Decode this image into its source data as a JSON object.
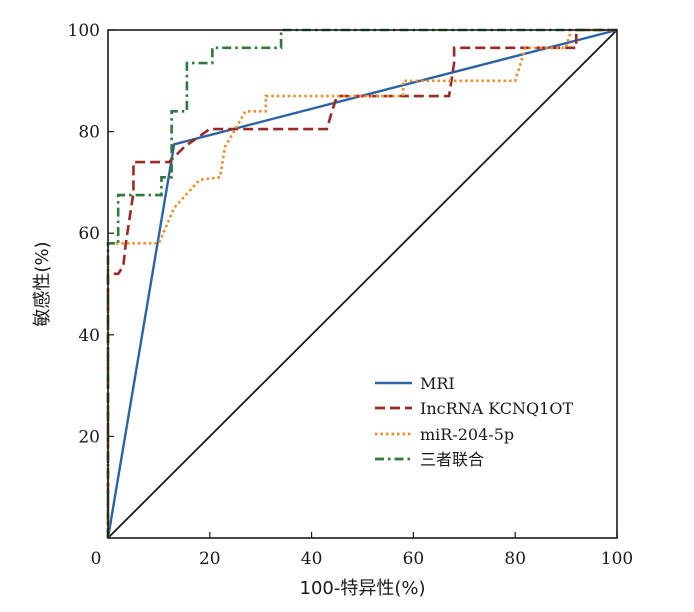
{
  "chart_data": {
    "type": "line",
    "title": "",
    "xlabel": "100-特异性(%)",
    "ylabel": "敏感性(%)",
    "xlim": [
      0,
      100
    ],
    "ylim": [
      0,
      100
    ],
    "x_ticks": [
      "0",
      "20",
      "40",
      "60",
      "80",
      "100"
    ],
    "y_ticks": [
      "20",
      "40",
      "60",
      "80",
      "100"
    ],
    "grid": false,
    "legend_position": "bottom-right",
    "diagonal": {
      "name": "reference-line",
      "x": [
        0,
        100
      ],
      "y": [
        0,
        100
      ],
      "color": "#1a1a1a"
    },
    "series": [
      {
        "name": "MRI",
        "color": "#2a63a8",
        "dash": "solid",
        "x": [
          0,
          13,
          100
        ],
        "y": [
          0,
          77.5,
          100
        ]
      },
      {
        "name": "IncRNA KCNQ1OT",
        "color": "#9b2a25",
        "dash": "dashed",
        "x": [
          0,
          0,
          2,
          3,
          3.5,
          5,
          5,
          12,
          13,
          15,
          20,
          43,
          44,
          45,
          67,
          68,
          68,
          92,
          92,
          100
        ],
        "y": [
          0,
          52,
          52,
          53.5,
          58,
          68,
          74,
          74,
          75,
          77,
          80.5,
          80.5,
          84,
          87,
          87,
          93.5,
          96.5,
          96.5,
          100,
          100
        ]
      },
      {
        "name": "miR-204-5p",
        "color": "#f08a2c",
        "dash": "dotted",
        "x": [
          0,
          0,
          2,
          10,
          13,
          18,
          22,
          23,
          25,
          27,
          31,
          31,
          58,
          58,
          80,
          82,
          90,
          91,
          100
        ],
        "y": [
          0,
          58,
          58,
          58,
          65,
          70.5,
          71,
          77,
          80.5,
          84,
          84,
          87,
          87,
          90,
          90,
          96.5,
          96.5,
          100,
          100
        ]
      },
      {
        "name": "三者联合",
        "color": "#2d7a3a",
        "dash": "dashdot",
        "x": [
          0,
          0,
          1,
          2,
          2,
          10.5,
          10.5,
          12.5,
          12.5,
          15.5,
          15.5,
          20.5,
          20.5,
          34,
          34,
          100
        ],
        "y": [
          0,
          58,
          58,
          58,
          67.5,
          67.5,
          71,
          71,
          84,
          84,
          93.5,
          93.5,
          96.5,
          96.5,
          100,
          100
        ]
      }
    ]
  }
}
